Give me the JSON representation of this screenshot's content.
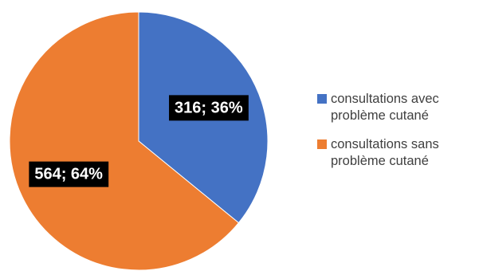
{
  "chart_data": {
    "type": "pie",
    "categories": [
      "consultations avec problème cutané",
      "consultations sans problème cutané"
    ],
    "values": [
      316,
      564
    ],
    "percentages": [
      "36%",
      "64%"
    ],
    "data_labels": [
      "316; 36%",
      "564; 64%"
    ],
    "colors": [
      "#4472C4",
      "#ED7D31"
    ],
    "legend": {
      "placement": "right",
      "entries": [
        {
          "line1": "consultations avec",
          "line2": "problème cutané",
          "color": "#4472C4"
        },
        {
          "line1": "consultations sans",
          "line2": "problème cutané",
          "color": "#ED7D31"
        }
      ]
    },
    "title": "",
    "start_angle_deg": 0,
    "direction": "clockwise"
  }
}
